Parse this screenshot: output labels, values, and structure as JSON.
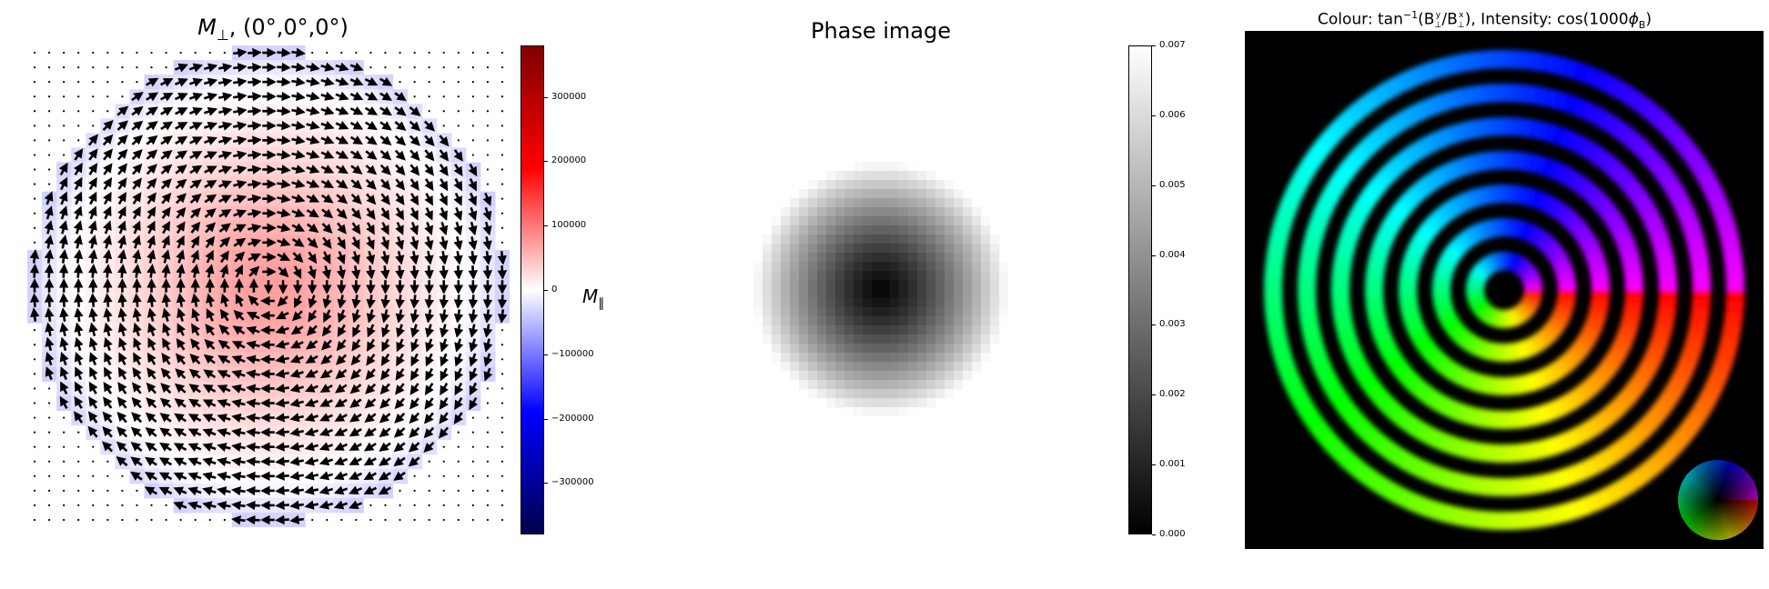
{
  "chart_data": [
    {
      "type": "heatmap",
      "title_main": "M",
      "title_sub": "⊥",
      "title_rest": ", (0°,0°,0°)",
      "vector_field": "vortex",
      "grid_size": [
        33,
        33
      ],
      "colorbar": {
        "label_main": "M",
        "label_sub": "∥",
        "range": [
          -380000,
          380000
        ],
        "colormap": "seismic",
        "ticks": [
          300000,
          200000,
          100000,
          0,
          -100000,
          -200000,
          -300000
        ],
        "tick_labels": [
          "300000",
          "200000",
          "100000",
          "0",
          "−100000",
          "−200000",
          "−300000"
        ]
      },
      "colors": {
        "positive": "#ff0000",
        "negative": "#0000ff",
        "max": "#800000",
        "min": "#000050"
      }
    },
    {
      "type": "heatmap",
      "title": "Phase image",
      "colorbar": {
        "range": [
          0.0,
          0.007
        ],
        "colormap": "gray",
        "ticks": [
          0.007,
          0.006,
          0.005,
          0.004,
          0.003,
          0.002,
          0.001,
          0.0
        ],
        "tick_labels": [
          "0.007",
          "0.006",
          "0.005",
          "0.004",
          "0.003",
          "0.002",
          "0.001",
          "0.000"
        ]
      }
    },
    {
      "type": "heatmap",
      "title_prefix": "Colour: tan",
      "title_sup": "−1",
      "title_mid": "(B",
      "title_sup_y": "y",
      "title_sub_perp": "⊥",
      "title_slash": "/B",
      "title_sup_x": "x",
      "title_sub_perp2": "⊥",
      "title_intensity": "),  Intensity: cos(1000",
      "title_phi": "ϕ",
      "title_sub_b": "B",
      "title_close": ")",
      "rings": 7,
      "colormap": "hsv-color-wheel",
      "inset": "color-wheel"
    }
  ]
}
